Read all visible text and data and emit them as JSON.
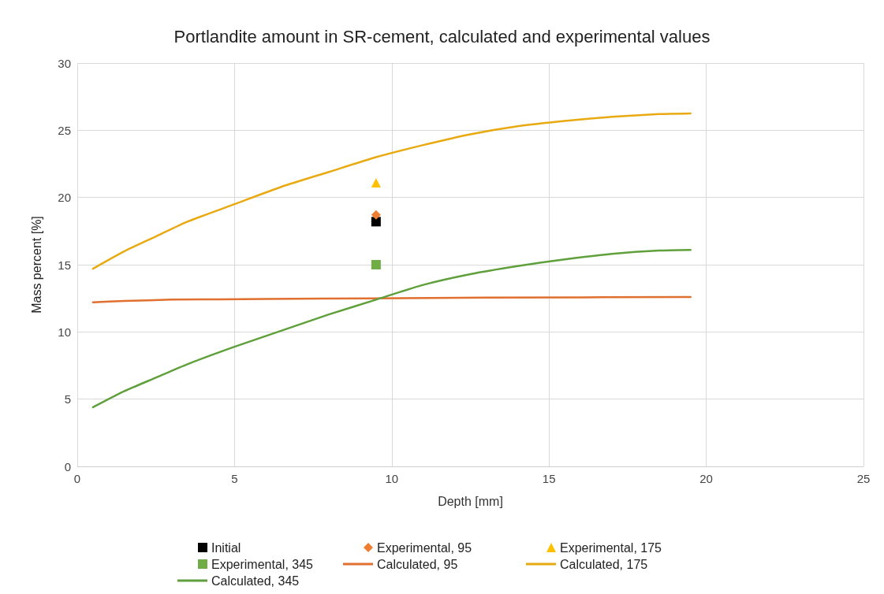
{
  "chart_data": {
    "type": "line",
    "title": "Portlandite amount in SR-cement, calculated and experimental values",
    "xlabel": "Depth [mm]",
    "ylabel": "Mass percent [%]",
    "xlim": [
      0,
      25
    ],
    "xticks": [
      0,
      5,
      10,
      15,
      20,
      25
    ],
    "ylim": [
      0,
      30
    ],
    "yticks": [
      0,
      5,
      10,
      15,
      20,
      25,
      30
    ],
    "grid": true,
    "legend": "bottom",
    "series": [
      {
        "name": "Initial",
        "type": "scatter",
        "marker": "square",
        "color": "#000000",
        "x": [
          9.5
        ],
        "values": [
          18.2
        ]
      },
      {
        "name": "Experimental, 95",
        "type": "scatter",
        "marker": "diamond",
        "color": "#ed7d31",
        "x": [
          9.5
        ],
        "values": [
          18.7
        ]
      },
      {
        "name": "Experimental, 175",
        "type": "scatter",
        "marker": "triangle",
        "color": "#ffc000",
        "x": [
          9.5
        ],
        "values": [
          21.1
        ]
      },
      {
        "name": "Experimental, 345",
        "type": "scatter",
        "marker": "square",
        "color": "#70ad47",
        "x": [
          9.5
        ],
        "values": [
          15.0
        ]
      },
      {
        "name": "Calculated, 95",
        "marker": "none",
        "color": "#e07030",
        "x": [
          0.5,
          1.5,
          3,
          6,
          9.5,
          13,
          19.5
        ],
        "values": [
          12.2,
          12.3,
          12.4,
          12.45,
          12.5,
          12.55,
          12.6
        ]
      },
      {
        "name": "Calculated, 175",
        "marker": "none",
        "color": "#e8aa10",
        "x": [
          0.5,
          1.5,
          2.5,
          3.5,
          5,
          6.5,
          8,
          9.5,
          11,
          12.5,
          14,
          15.5,
          17,
          18.5,
          19.5
        ],
        "values": [
          14.7,
          16.0,
          17.1,
          18.2,
          19.5,
          20.8,
          21.9,
          23.0,
          23.9,
          24.7,
          25.3,
          25.7,
          26.0,
          26.2,
          26.25
        ]
      },
      {
        "name": "Calculated, 345",
        "marker": "none",
        "color": "#5fa03c",
        "x": [
          0.5,
          1.5,
          2.5,
          3.5,
          5,
          6.5,
          8,
          9.5,
          11,
          12.5,
          14,
          15.5,
          17,
          18.5,
          19.5
        ],
        "values": [
          4.4,
          5.6,
          6.6,
          7.6,
          8.9,
          10.1,
          11.3,
          12.4,
          13.5,
          14.3,
          14.9,
          15.4,
          15.8,
          16.05,
          16.1
        ]
      }
    ]
  }
}
